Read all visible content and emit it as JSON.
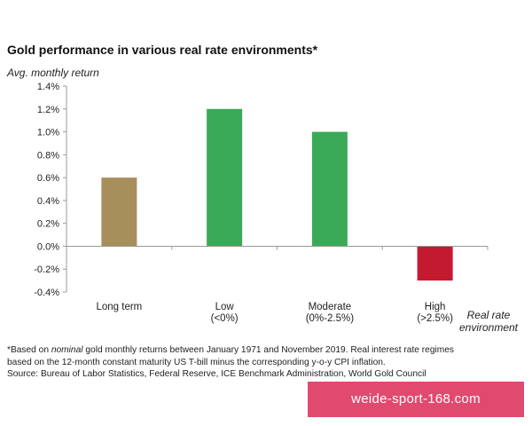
{
  "chart_data": {
    "type": "bar",
    "title": "Gold performance in various real rate environments*",
    "ylabel": "Avg. monthly return",
    "xlabel": [
      "Real rate",
      "environment"
    ],
    "categories": [
      {
        "line1": "Long term",
        "line2": ""
      },
      {
        "line1": "Low",
        "line2": "(<0%)"
      },
      {
        "line1": "Moderate",
        "line2": "(0%-2.5%)"
      },
      {
        "line1": "High",
        "line2": "(>2.5%)"
      }
    ],
    "values": [
      0.6,
      1.2,
      1.0,
      -0.3
    ],
    "bar_colors": [
      "#a78f5c",
      "#3aaa57",
      "#3aaa57",
      "#c41a30"
    ],
    "ylim": [
      -0.4,
      1.4
    ],
    "yticks": [
      1.4,
      1.2,
      1.0,
      0.8,
      0.6,
      0.4,
      0.2,
      0.0,
      -0.2,
      -0.4
    ],
    "ytick_labels": [
      "1.4%",
      "1.2%",
      "1.0%",
      "0.8%",
      "0.6%",
      "0.4%",
      "0.2%",
      "0.0%",
      "-0.2%",
      "-0.4%"
    ],
    "grid": false,
    "legend": "none"
  },
  "footnote": {
    "prefix": "*Based on ",
    "emph": "nominal",
    "line1_rest": " gold monthly returns between January 1971 and November 2019. Real interest rate regimes",
    "line2": "based on the 12-month constant maturity US T-bill minus the corresponding y-o-y CPI inflation.",
    "line3": "Source: Bureau of Labor Statistics, Federal Reserve, ICE Benchmark Administration, World Gold Council"
  },
  "watermark": "weide-sport-168.com"
}
